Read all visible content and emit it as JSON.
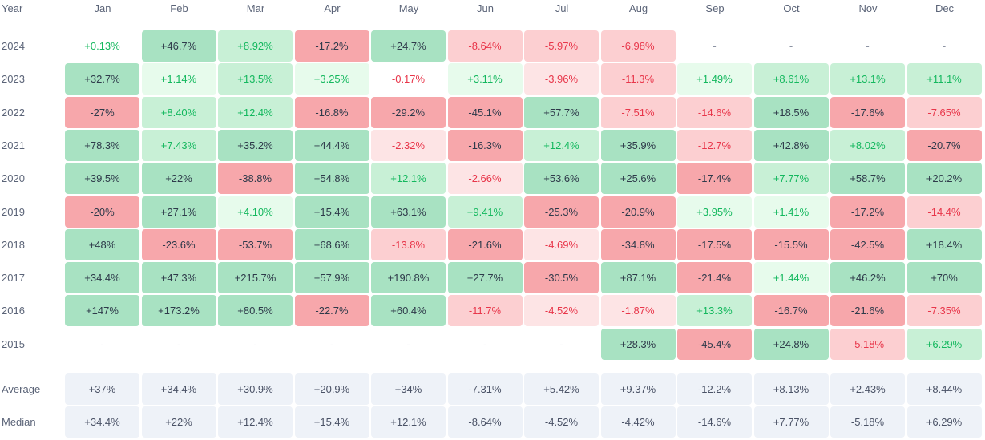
{
  "chart_data": {
    "type": "heatmap",
    "title": "",
    "corner_label": "Year",
    "columns": [
      "Jan",
      "Feb",
      "Mar",
      "Apr",
      "May",
      "Jun",
      "Jul",
      "Aug",
      "Sep",
      "Oct",
      "Nov",
      "Dec"
    ],
    "rows": [
      {
        "label": "2024",
        "values": [
          "+0.13%",
          "+46.7%",
          "+8.92%",
          "-17.2%",
          "+24.7%",
          "-8.64%",
          "-5.97%",
          "-6.98%",
          "-",
          "-",
          "-",
          "-"
        ]
      },
      {
        "label": "2023",
        "values": [
          "+32.7%",
          "+1.14%",
          "+13.5%",
          "+3.25%",
          "-0.17%",
          "+3.11%",
          "-3.96%",
          "-11.3%",
          "+1.49%",
          "+8.61%",
          "+13.1%",
          "+11.1%"
        ]
      },
      {
        "label": "2022",
        "values": [
          "-27%",
          "+8.40%",
          "+12.4%",
          "-16.8%",
          "-29.2%",
          "-45.1%",
          "+57.7%",
          "-7.51%",
          "-14.6%",
          "+18.5%",
          "-17.6%",
          "-7.65%"
        ]
      },
      {
        "label": "2021",
        "values": [
          "+78.3%",
          "+7.43%",
          "+35.2%",
          "+44.4%",
          "-2.32%",
          "-16.3%",
          "+12.4%",
          "+35.9%",
          "-12.7%",
          "+42.8%",
          "+8.02%",
          "-20.7%"
        ]
      },
      {
        "label": "2020",
        "values": [
          "+39.5%",
          "+22%",
          "-38.8%",
          "+54.8%",
          "+12.1%",
          "-2.66%",
          "+53.6%",
          "+25.6%",
          "-17.4%",
          "+7.77%",
          "+58.7%",
          "+20.2%"
        ]
      },
      {
        "label": "2019",
        "values": [
          "-20%",
          "+27.1%",
          "+4.10%",
          "+15.4%",
          "+63.1%",
          "+9.41%",
          "-25.3%",
          "-20.9%",
          "+3.95%",
          "+1.41%",
          "-17.2%",
          "-14.4%"
        ]
      },
      {
        "label": "2018",
        "values": [
          "+48%",
          "-23.6%",
          "-53.7%",
          "+68.6%",
          "-13.8%",
          "-21.6%",
          "-4.69%",
          "-34.8%",
          "-17.5%",
          "-15.5%",
          "-42.5%",
          "+18.4%"
        ]
      },
      {
        "label": "2017",
        "values": [
          "+34.4%",
          "+47.3%",
          "+215.7%",
          "+57.9%",
          "+190.8%",
          "+27.7%",
          "-30.5%",
          "+87.1%",
          "-21.4%",
          "+1.44%",
          "+46.2%",
          "+70%"
        ]
      },
      {
        "label": "2016",
        "values": [
          "+147%",
          "+173.2%",
          "+80.5%",
          "-22.7%",
          "+60.4%",
          "-11.7%",
          "-4.52%",
          "-1.87%",
          "+13.3%",
          "-16.7%",
          "-21.6%",
          "-7.35%"
        ]
      },
      {
        "label": "2015",
        "values": [
          "-",
          "-",
          "-",
          "-",
          "-",
          "-",
          "-",
          "+28.3%",
          "-45.4%",
          "+24.8%",
          "-5.18%",
          "+6.29%"
        ]
      }
    ],
    "summary_rows": [
      {
        "label": "Average",
        "values": [
          "+37%",
          "+34.4%",
          "+30.9%",
          "+20.9%",
          "+34%",
          "-7.31%",
          "+5.42%",
          "+9.37%",
          "-12.2%",
          "+8.13%",
          "+2.43%",
          "+8.44%"
        ]
      },
      {
        "label": "Median",
        "values": [
          "+34.4%",
          "+22%",
          "+12.4%",
          "+15.4%",
          "+12.1%",
          "-8.64%",
          "-4.52%",
          "-4.42%",
          "-14.6%",
          "+7.77%",
          "-5.18%",
          "+6.29%"
        ]
      }
    ],
    "colors": {
      "pos_strong_bg": "#a8e2c2",
      "pos_mid_bg": "#c8f0d6",
      "pos_light_bg": "#e7fbec",
      "pos_strong_text": "#2e3a4a",
      "pos_light_text": "#14b85e",
      "neg_strong_bg": "#f7a7ab",
      "neg_mid_bg": "#fccfd1",
      "neg_light_bg": "#fde4e5",
      "neg_strong_text": "#2e3a4a",
      "neg_light_text": "#e8364a",
      "summary_bg": "#eef2f8",
      "summary_text": "#4a5266"
    }
  }
}
